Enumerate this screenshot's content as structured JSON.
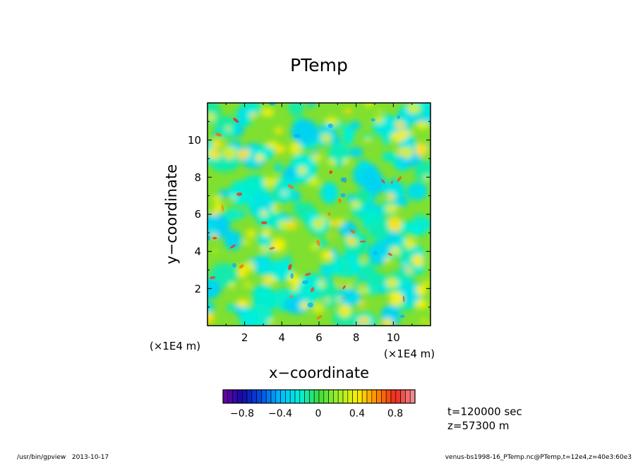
{
  "footer": {
    "left": "/usr/bin/gpview   2013-10-17",
    "right": "venus-bs1998-16_PTemp.nc@PTemp,t=12e4,z=40e3:60e3"
  },
  "info": {
    "time": "t=120000 sec",
    "height": "z=57300  m"
  },
  "chart_data": {
    "type": "heatmap",
    "title": "PTemp",
    "xlabel": "x−coordinate",
    "ylabel": "y−coordinate",
    "xlim": [
      0,
      12
    ],
    "ylim": [
      0,
      12
    ],
    "x_ticks": [
      2,
      4,
      6,
      8,
      10
    ],
    "y_ticks": [
      2,
      4,
      6,
      8,
      10
    ],
    "x_tick_labels": [
      "2",
      "4",
      "6",
      "8",
      "10"
    ],
    "y_tick_labels": [
      "2",
      "4",
      "6",
      "8",
      "10"
    ],
    "x_unit_label": "(×1E4 m)",
    "y_unit_label": "(×1E4 m)",
    "colorbar": {
      "range": [
        -1.0,
        1.0
      ],
      "step": 0.05,
      "tick_values": [
        -0.8,
        -0.4,
        0,
        0.4,
        0.8
      ],
      "tick_labels": [
        "−0.8",
        "−0.4",
        "0",
        "0.4",
        "0.8"
      ]
    },
    "field_description_values": {
      "min_approx": -0.4,
      "max_approx": 0.8
    }
  }
}
